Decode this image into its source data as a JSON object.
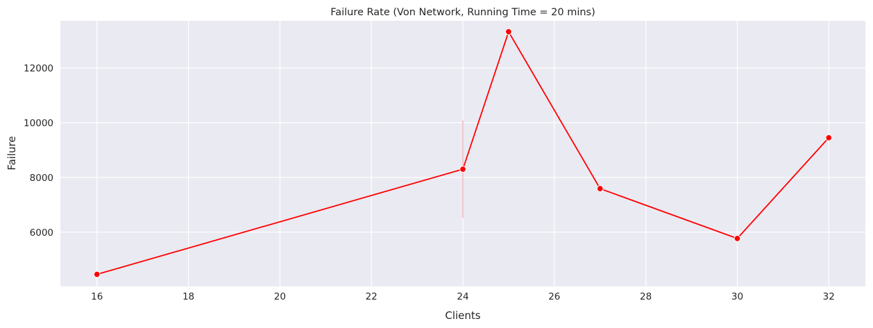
{
  "chart_data": {
    "type": "line",
    "title": "Failure Rate (Von Network, Running Time = 20 mins)",
    "xlabel": "Clients",
    "ylabel": "Failure",
    "xlim": [
      15.2,
      32.8
    ],
    "ylim": [
      4020,
      13720
    ],
    "x_ticks": [
      16,
      18,
      20,
      22,
      24,
      26,
      28,
      30,
      32
    ],
    "y_ticks": [
      6000,
      8000,
      10000,
      12000
    ],
    "x_tick_labels": [
      "16",
      "18",
      "20",
      "22",
      "24",
      "26",
      "28",
      "30",
      "32"
    ],
    "y_tick_labels": [
      "6000",
      "8000",
      "10000",
      "12000"
    ],
    "grid": true,
    "legend": "none",
    "series": [
      {
        "color": "#ff0000",
        "x": [
          16,
          24,
          25,
          27,
          30,
          32
        ],
        "y": [
          4460,
          8300,
          13320,
          7590,
          5770,
          9450
        ],
        "ci_low": [
          null,
          6520,
          null,
          null,
          null,
          null
        ],
        "ci_high": [
          null,
          10080,
          null,
          null,
          null,
          null
        ]
      }
    ],
    "colors": {
      "plot_background": "#eaeaf2",
      "grid": "#ffffff",
      "line": "#ff0000",
      "confidence_band": "#f4b0b8"
    }
  }
}
